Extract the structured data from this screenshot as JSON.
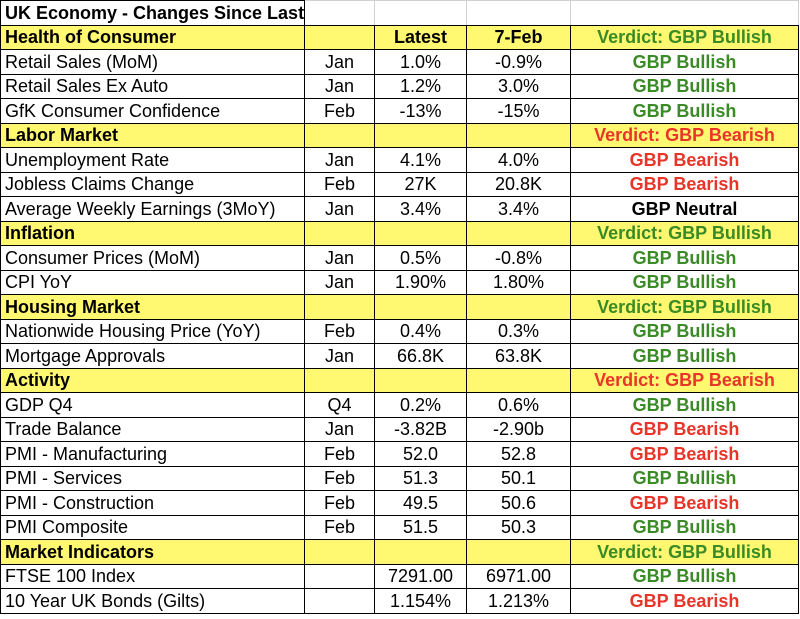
{
  "title": "UK Economy - Changes Since Last BoE Meeting",
  "colors": {
    "section_bg": "#fff870",
    "bullish": "#3a8a26",
    "bearish": "#e8352a",
    "neutral": "#000000"
  },
  "sections": [
    {
      "name": "Health of Consumer",
      "latest_header": "Latest",
      "prev_header": "7-Feb",
      "verdict": "Verdict: GBP Bullish",
      "verdict_class": "bullish",
      "rows": [
        {
          "name": "Retail Sales (MoM)",
          "month": "Jan",
          "latest": "1.0%",
          "prev": "-0.9%",
          "verdict": "GBP Bullish",
          "verdict_class": "bullish"
        },
        {
          "name": "Retail Sales Ex Auto",
          "month": "Jan",
          "latest": "1.2%",
          "prev": "3.0%",
          "verdict": "GBP Bullish",
          "verdict_class": "bullish"
        },
        {
          "name": "GfK Consumer Confidence",
          "month": "Feb",
          "latest": "-13%",
          "prev": "-15%",
          "verdict": "GBP Bullish",
          "verdict_class": "bullish"
        }
      ]
    },
    {
      "name": "Labor Market",
      "latest_header": "",
      "prev_header": "",
      "verdict": "Verdict: GBP Bearish",
      "verdict_class": "bearish",
      "rows": [
        {
          "name": "Unemployment Rate",
          "month": "Jan",
          "latest": "4.1%",
          "prev": "4.0%",
          "verdict": "GBP Bearish",
          "verdict_class": "bearish"
        },
        {
          "name": "Jobless Claims Change",
          "month": "Feb",
          "latest": "27K",
          "prev": "20.8K",
          "verdict": "GBP Bearish",
          "verdict_class": "bearish"
        },
        {
          "name": "Average Weekly Earnings (3MoY)",
          "month": "Jan",
          "latest": "3.4%",
          "prev": "3.4%",
          "verdict": "GBP Neutral",
          "verdict_class": "neutral"
        }
      ]
    },
    {
      "name": "Inflation",
      "latest_header": "",
      "prev_header": "",
      "verdict": "Verdict: GBP Bullish",
      "verdict_class": "bullish",
      "rows": [
        {
          "name": "Consumer Prices (MoM)",
          "month": "Jan",
          "latest": "0.5%",
          "prev": "-0.8%",
          "verdict": "GBP Bullish",
          "verdict_class": "bullish"
        },
        {
          "name": "CPI YoY",
          "month": "Jan",
          "latest": "1.90%",
          "prev": "1.80%",
          "verdict": "GBP Bullish",
          "verdict_class": "bullish"
        }
      ]
    },
    {
      "name": "Housing Market",
      "latest_header": "",
      "prev_header": "",
      "verdict": "Verdict: GBP Bullish",
      "verdict_class": "bullish",
      "rows": [
        {
          "name": "Nationwide Housing Price (YoY)",
          "month": "Feb",
          "latest": "0.4%",
          "prev": "0.3%",
          "verdict": "GBP Bullish",
          "verdict_class": "bullish"
        },
        {
          "name": "Mortgage Approvals",
          "month": "Jan",
          "latest": "66.8K",
          "prev": "63.8K",
          "verdict": "GBP Bullish",
          "verdict_class": "bullish"
        }
      ]
    },
    {
      "name": "Activity",
      "latest_header": "",
      "prev_header": "",
      "verdict": "Verdict: GBP Bearish",
      "verdict_class": "bearish",
      "rows": [
        {
          "name": "GDP Q4",
          "month": "Q4",
          "latest": "0.2%",
          "prev": "0.6%",
          "verdict": "GBP Bullish",
          "verdict_class": "bullish"
        },
        {
          "name": "Trade Balance",
          "month": "Jan",
          "latest": "-3.82B",
          "prev": "-2.90b",
          "verdict": "GBP Bearish",
          "verdict_class": "bearish"
        },
        {
          "name": "PMI - Manufacturing",
          "month": "Feb",
          "latest": "52.0",
          "prev": "52.8",
          "verdict": "GBP Bearish",
          "verdict_class": "bearish"
        },
        {
          "name": "PMI - Services",
          "month": "Feb",
          "latest": "51.3",
          "prev": "50.1",
          "verdict": "GBP Bullish",
          "verdict_class": "bullish"
        },
        {
          "name": "PMI - Construction",
          "month": "Feb",
          "latest": "49.5",
          "prev": "50.6",
          "verdict": "GBP Bearish",
          "verdict_class": "bearish"
        },
        {
          "name": "PMI Composite",
          "month": "Feb",
          "latest": "51.5",
          "prev": "50.3",
          "verdict": "GBP Bullish",
          "verdict_class": "bullish"
        }
      ]
    },
    {
      "name": "Market Indicators",
      "latest_header": "",
      "prev_header": "",
      "verdict": "Verdict: GBP Bullish",
      "verdict_class": "bullish",
      "rows": [
        {
          "name": "FTSE 100 Index",
          "month": "",
          "latest": "7291.00",
          "prev": "6971.00",
          "verdict": "GBP Bullish",
          "verdict_class": "bullish"
        },
        {
          "name": "10 Year UK Bonds (Gilts)",
          "month": "",
          "latest": "1.154%",
          "prev": "1.213%",
          "verdict": "GBP Bearish",
          "verdict_class": "bearish"
        }
      ]
    }
  ]
}
